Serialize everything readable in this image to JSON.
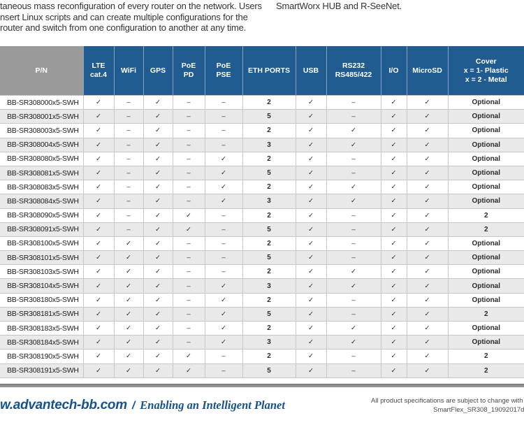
{
  "intro": {
    "left_lines": [
      "taneous mass reconfiguration of every router on the network. Users",
      "nsert Linux scripts and can create multiple configurations for the",
      "router and switch from one configuration to another at any time."
    ],
    "right_line": "SmartWorx HUB and R-SeeNet."
  },
  "table": {
    "columns": [
      {
        "id": "pn",
        "label": "P/N"
      },
      {
        "id": "lte-cat4",
        "label": "LTE\ncat.4"
      },
      {
        "id": "wifi",
        "label": "WiFi"
      },
      {
        "id": "gps",
        "label": "GPS"
      },
      {
        "id": "poe-pd",
        "label": "PoE\nPD"
      },
      {
        "id": "poe-pse",
        "label": "PoE\nPSE"
      },
      {
        "id": "eth-ports",
        "label": "ETH PORTS"
      },
      {
        "id": "usb",
        "label": "USB"
      },
      {
        "id": "rs232-rs485-422",
        "label": "RS232\nRS485/422"
      },
      {
        "id": "io",
        "label": "I/O"
      },
      {
        "id": "microsd",
        "label": "MicroSD"
      },
      {
        "id": "cover",
        "label": "Cover\nx = 1- Plastic\nx = 2 - Metal"
      }
    ],
    "rows": [
      {
        "pn": "BB-SR308000x5-SWH",
        "values": [
          "✓",
          "–",
          "✓",
          "–",
          "–",
          "2",
          "✓",
          "–",
          "✓",
          "✓",
          "Optional"
        ]
      },
      {
        "pn": "BB-SR308001x5-SWH",
        "values": [
          "✓",
          "–",
          "✓",
          "–",
          "–",
          "5",
          "✓",
          "–",
          "✓",
          "✓",
          "Optional"
        ]
      },
      {
        "pn": "BB-SR308003x5-SWH",
        "values": [
          "✓",
          "–",
          "✓",
          "–",
          "–",
          "2",
          "✓",
          "✓",
          "✓",
          "✓",
          "Optional"
        ]
      },
      {
        "pn": "BB-SR308004x5-SWH",
        "values": [
          "✓",
          "–",
          "✓",
          "–",
          "–",
          "3",
          "✓",
          "✓",
          "✓",
          "✓",
          "Optional"
        ]
      },
      {
        "pn": "BB-SR308080x5-SWH",
        "values": [
          "✓",
          "–",
          "✓",
          "–",
          "✓",
          "2",
          "✓",
          "–",
          "✓",
          "✓",
          "Optional"
        ]
      },
      {
        "pn": "BB-SR308081x5-SWH",
        "values": [
          "✓",
          "–",
          "✓",
          "–",
          "✓",
          "5",
          "✓",
          "–",
          "✓",
          "✓",
          "Optional"
        ]
      },
      {
        "pn": "BB-SR308083x5-SWH",
        "values": [
          "✓",
          "–",
          "✓",
          "–",
          "✓",
          "2",
          "✓",
          "✓",
          "✓",
          "✓",
          "Optional"
        ]
      },
      {
        "pn": "BB-SR308084x5-SWH",
        "values": [
          "✓",
          "–",
          "✓",
          "–",
          "✓",
          "3",
          "✓",
          "✓",
          "✓",
          "✓",
          "Optional"
        ]
      },
      {
        "pn": "BB-SR308090x5-SWH",
        "values": [
          "✓",
          "–",
          "✓",
          "✓",
          "–",
          "2",
          "✓",
          "–",
          "✓",
          "✓",
          "2"
        ]
      },
      {
        "pn": "BB-SR308091x5-SWH",
        "values": [
          "✓",
          "–",
          "✓",
          "✓",
          "–",
          "5",
          "✓",
          "–",
          "✓",
          "✓",
          "2"
        ]
      },
      {
        "pn": "BB-SR308100x5-SWH",
        "values": [
          "✓",
          "✓",
          "✓",
          "–",
          "–",
          "2",
          "✓",
          "–",
          "✓",
          "✓",
          "Optional"
        ]
      },
      {
        "pn": "BB-SR308101x5-SWH",
        "values": [
          "✓",
          "✓",
          "✓",
          "–",
          "–",
          "5",
          "✓",
          "–",
          "✓",
          "✓",
          "Optional"
        ]
      },
      {
        "pn": "BB-SR308103x5-SWH",
        "values": [
          "✓",
          "✓",
          "✓",
          "–",
          "–",
          "2",
          "✓",
          "✓",
          "✓",
          "✓",
          "Optional"
        ]
      },
      {
        "pn": "BB-SR308104x5-SWH",
        "values": [
          "✓",
          "✓",
          "✓",
          "–",
          "✓",
          "3",
          "✓",
          "✓",
          "✓",
          "✓",
          "Optional"
        ]
      },
      {
        "pn": "BB-SR308180x5-SWH",
        "values": [
          "✓",
          "✓",
          "✓",
          "–",
          "✓",
          "2",
          "✓",
          "–",
          "✓",
          "✓",
          "Optional"
        ]
      },
      {
        "pn": "BB-SR308181x5-SWH",
        "values": [
          "✓",
          "✓",
          "✓",
          "–",
          "✓",
          "5",
          "✓",
          "–",
          "✓",
          "✓",
          "2"
        ]
      },
      {
        "pn": "BB-SR308183x5-SWH",
        "values": [
          "✓",
          "✓",
          "✓",
          "–",
          "✓",
          "2",
          "✓",
          "✓",
          "✓",
          "✓",
          "Optional"
        ]
      },
      {
        "pn": "BB-SR308184x5-SWH",
        "values": [
          "✓",
          "✓",
          "✓",
          "–",
          "✓",
          "3",
          "✓",
          "✓",
          "✓",
          "✓",
          "Optional"
        ]
      },
      {
        "pn": "BB-SR308190x5-SWH",
        "values": [
          "✓",
          "✓",
          "✓",
          "✓",
          "–",
          "2",
          "✓",
          "–",
          "✓",
          "✓",
          "2"
        ]
      },
      {
        "pn": "BB-SR308191x5-SWH",
        "values": [
          "✓",
          "✓",
          "✓",
          "✓",
          "–",
          "5",
          "✓",
          "–",
          "✓",
          "✓",
          "2"
        ]
      }
    ],
    "colors": {
      "header_blue": "#215c90",
      "header_gray": "#9a9a9a",
      "row_alt": "#e9e9e9",
      "grid": "#c7c7c7"
    }
  },
  "footer": {
    "site": "w.advantech-bb.com",
    "separator": "/",
    "tagline": "Enabling an Intelligent Planet",
    "note_line1": "All product specifications are subject to change with",
    "note_line2": "SmartFlex_SR308_19092017d",
    "accent_color": "#15538e"
  }
}
